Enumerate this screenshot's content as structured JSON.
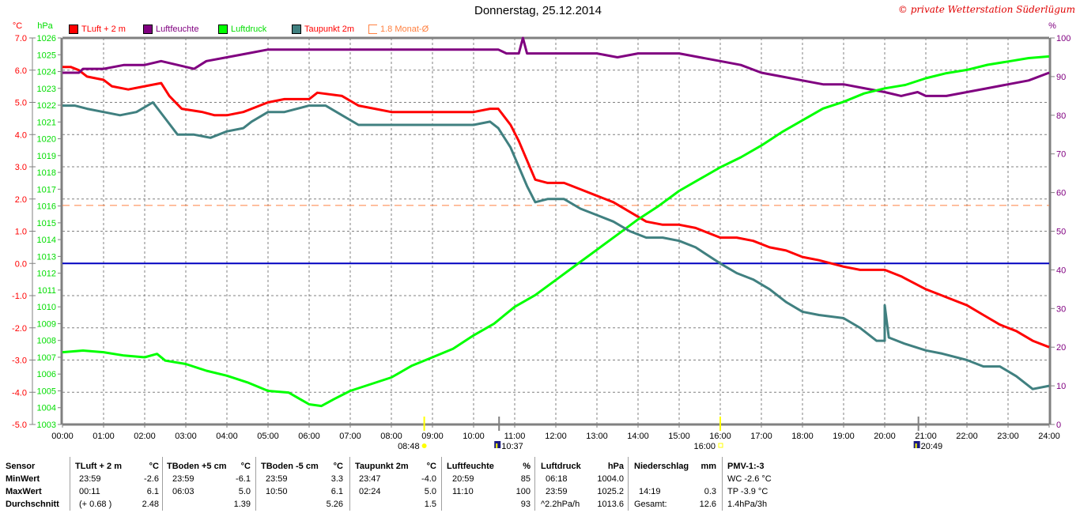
{
  "header": {
    "title": "Donnerstag, 25.12.2014",
    "copyright": "© private Wetterstation Süderlügum"
  },
  "legend": [
    {
      "label": "TLuft + 2 m",
      "color": "#ff0000",
      "text_color": "#ff0000"
    },
    {
      "label": "Luftfeuchte",
      "color": "#800080",
      "text_color": "#800080"
    },
    {
      "label": "Luftdruck",
      "color": "#00ff00",
      "text_color": "#00dd00"
    },
    {
      "label": "Taupunkt 2m",
      "color": "#408080",
      "text_color": "#ff0000"
    },
    {
      "label": "1.8 Monat-Ø",
      "color": "#ff8040",
      "text_color": "#ff8040"
    }
  ],
  "chart_data": {
    "type": "line",
    "title": "Donnerstag, 25.12.2014",
    "xlabel": "",
    "x_range": [
      0,
      24
    ],
    "x_ticks": [
      "00:00",
      "01:00",
      "02:00",
      "03:00",
      "04:00",
      "05:00",
      "06:00",
      "07:00",
      "08:00",
      "09:00",
      "10:00",
      "11:00",
      "12:00",
      "13:00",
      "14:00",
      "15:00",
      "16:00",
      "17:00",
      "18:00",
      "19:00",
      "20:00",
      "21:00",
      "22:00",
      "23:00",
      "24:00"
    ],
    "grid": true,
    "axes": {
      "temp": {
        "label": "°C",
        "range": [
          -5.0,
          7.0
        ],
        "ticks": [
          "7.0",
          "6.0",
          "5.0",
          "4.0",
          "3.0",
          "2.0",
          "1.0",
          "0.0",
          "-1.0",
          "-2.0",
          "-3.0",
          "-4.0",
          "-5.0"
        ],
        "color": "#ff0000"
      },
      "pressure": {
        "label": "hPa",
        "range": [
          1003,
          1026
        ],
        "ticks": [
          "1026",
          "1025",
          "1024",
          "1023",
          "1022",
          "1021",
          "1020",
          "1019",
          "1018",
          "1017",
          "1016",
          "1015",
          "1014",
          "1013",
          "1012",
          "1011",
          "1010",
          "1009",
          "1008",
          "1007",
          "1006",
          "1005",
          "1004",
          "1003"
        ],
        "color": "#00dd00"
      },
      "humidity": {
        "label": "%",
        "range": [
          0,
          100
        ],
        "ticks": [
          "100",
          "90",
          "80",
          "70",
          "60",
          "50",
          "40",
          "30",
          "20",
          "10",
          "0"
        ],
        "color": "#800080"
      }
    },
    "reference_lines": [
      {
        "name": "zero-line",
        "axis": "temp",
        "value": 0.0,
        "color": "#0000c0"
      },
      {
        "name": "month-avg-line",
        "axis": "temp",
        "value": 1.8,
        "color": "#ff8040"
      }
    ],
    "series": [
      {
        "name": "TLuft + 2 m",
        "axis": "temp",
        "color": "#ff0000",
        "points": [
          [
            0,
            6.1
          ],
          [
            0.2,
            6.1
          ],
          [
            0.4,
            6.0
          ],
          [
            0.6,
            5.8
          ],
          [
            1.0,
            5.7
          ],
          [
            1.2,
            5.5
          ],
          [
            1.6,
            5.4
          ],
          [
            2.0,
            5.5
          ],
          [
            2.4,
            5.6
          ],
          [
            2.6,
            5.2
          ],
          [
            2.9,
            4.8
          ],
          [
            3.4,
            4.7
          ],
          [
            3.7,
            4.6
          ],
          [
            4.0,
            4.6
          ],
          [
            4.4,
            4.7
          ],
          [
            4.6,
            4.8
          ],
          [
            5.0,
            5.0
          ],
          [
            5.4,
            5.1
          ],
          [
            6.0,
            5.1
          ],
          [
            6.2,
            5.3
          ],
          [
            6.8,
            5.2
          ],
          [
            7.2,
            4.9
          ],
          [
            7.6,
            4.8
          ],
          [
            8.0,
            4.7
          ],
          [
            9.0,
            4.7
          ],
          [
            10.0,
            4.7
          ],
          [
            10.4,
            4.8
          ],
          [
            10.6,
            4.8
          ],
          [
            10.9,
            4.3
          ],
          [
            11.1,
            3.8
          ],
          [
            11.3,
            3.2
          ],
          [
            11.5,
            2.6
          ],
          [
            11.8,
            2.5
          ],
          [
            12.2,
            2.5
          ],
          [
            12.6,
            2.3
          ],
          [
            13.0,
            2.1
          ],
          [
            13.4,
            1.9
          ],
          [
            13.8,
            1.6
          ],
          [
            14.2,
            1.3
          ],
          [
            14.6,
            1.2
          ],
          [
            15.0,
            1.2
          ],
          [
            15.4,
            1.1
          ],
          [
            16.0,
            0.8
          ],
          [
            16.4,
            0.8
          ],
          [
            16.8,
            0.7
          ],
          [
            17.2,
            0.5
          ],
          [
            17.6,
            0.4
          ],
          [
            18.0,
            0.2
          ],
          [
            18.4,
            0.1
          ],
          [
            19.0,
            -0.1
          ],
          [
            19.4,
            -0.2
          ],
          [
            20.0,
            -0.2
          ],
          [
            20.4,
            -0.4
          ],
          [
            21.0,
            -0.8
          ],
          [
            21.4,
            -1.0
          ],
          [
            22.0,
            -1.3
          ],
          [
            22.4,
            -1.6
          ],
          [
            22.8,
            -1.9
          ],
          [
            23.2,
            -2.1
          ],
          [
            23.6,
            -2.4
          ],
          [
            24.0,
            -2.6
          ]
        ]
      },
      {
        "name": "Luftfeuchte",
        "axis": "humidity",
        "color": "#800080",
        "points": [
          [
            0,
            91
          ],
          [
            0.4,
            91
          ],
          [
            0.5,
            92
          ],
          [
            1.0,
            92
          ],
          [
            1.5,
            93
          ],
          [
            2.0,
            93
          ],
          [
            2.4,
            94
          ],
          [
            2.8,
            93
          ],
          [
            3.2,
            92
          ],
          [
            3.5,
            94
          ],
          [
            4.0,
            95
          ],
          [
            4.5,
            96
          ],
          [
            5.0,
            97
          ],
          [
            6.0,
            97
          ],
          [
            7.0,
            97
          ],
          [
            8.0,
            97
          ],
          [
            9.0,
            97
          ],
          [
            10.0,
            97
          ],
          [
            10.6,
            97
          ],
          [
            10.8,
            96
          ],
          [
            11.1,
            96
          ],
          [
            11.2,
            100
          ],
          [
            11.3,
            96
          ],
          [
            12.0,
            96
          ],
          [
            13.0,
            96
          ],
          [
            13.5,
            95
          ],
          [
            14.0,
            96
          ],
          [
            15.0,
            96
          ],
          [
            15.5,
            95
          ],
          [
            16.0,
            94
          ],
          [
            16.5,
            93
          ],
          [
            17.0,
            91
          ],
          [
            17.5,
            90
          ],
          [
            18.0,
            89
          ],
          [
            18.5,
            88
          ],
          [
            19.0,
            88
          ],
          [
            19.5,
            87
          ],
          [
            20.0,
            86
          ],
          [
            20.4,
            85
          ],
          [
            20.8,
            86
          ],
          [
            21.0,
            85
          ],
          [
            21.5,
            85
          ],
          [
            22.0,
            86
          ],
          [
            22.5,
            87
          ],
          [
            23.0,
            88
          ],
          [
            23.5,
            89
          ],
          [
            24.0,
            91
          ]
        ]
      },
      {
        "name": "Luftdruck",
        "axis": "pressure",
        "color": "#00ff00",
        "points": [
          [
            0,
            1007.3
          ],
          [
            0.5,
            1007.4
          ],
          [
            1.0,
            1007.3
          ],
          [
            1.5,
            1007.1
          ],
          [
            2.0,
            1007.0
          ],
          [
            2.3,
            1007.2
          ],
          [
            2.5,
            1006.8
          ],
          [
            3.0,
            1006.6
          ],
          [
            3.5,
            1006.2
          ],
          [
            4.0,
            1005.9
          ],
          [
            4.5,
            1005.5
          ],
          [
            5.0,
            1005.0
          ],
          [
            5.5,
            1004.9
          ],
          [
            6.0,
            1004.2
          ],
          [
            6.3,
            1004.1
          ],
          [
            6.6,
            1004.5
          ],
          [
            7.0,
            1005.0
          ],
          [
            7.5,
            1005.4
          ],
          [
            8.0,
            1005.8
          ],
          [
            8.5,
            1006.5
          ],
          [
            9.0,
            1007.0
          ],
          [
            9.5,
            1007.5
          ],
          [
            10.0,
            1008.3
          ],
          [
            10.5,
            1009.0
          ],
          [
            11.0,
            1010.0
          ],
          [
            11.5,
            1010.7
          ],
          [
            12.0,
            1011.6
          ],
          [
            12.5,
            1012.5
          ],
          [
            13.0,
            1013.4
          ],
          [
            13.5,
            1014.3
          ],
          [
            14.0,
            1015.2
          ],
          [
            14.5,
            1016.0
          ],
          [
            15.0,
            1016.9
          ],
          [
            15.5,
            1017.6
          ],
          [
            16.0,
            1018.3
          ],
          [
            16.5,
            1018.9
          ],
          [
            17.0,
            1019.6
          ],
          [
            17.5,
            1020.4
          ],
          [
            18.0,
            1021.1
          ],
          [
            18.5,
            1021.8
          ],
          [
            19.0,
            1022.2
          ],
          [
            19.5,
            1022.7
          ],
          [
            20.0,
            1023.0
          ],
          [
            20.5,
            1023.2
          ],
          [
            21.0,
            1023.6
          ],
          [
            21.5,
            1023.9
          ],
          [
            22.0,
            1024.1
          ],
          [
            22.5,
            1024.4
          ],
          [
            23.0,
            1024.6
          ],
          [
            23.5,
            1024.8
          ],
          [
            24.0,
            1024.9
          ]
        ]
      },
      {
        "name": "Taupunkt 2m",
        "axis": "temp",
        "color": "#408080",
        "points": [
          [
            0,
            4.9
          ],
          [
            0.3,
            4.9
          ],
          [
            0.6,
            4.8
          ],
          [
            1.0,
            4.7
          ],
          [
            1.4,
            4.6
          ],
          [
            1.8,
            4.7
          ],
          [
            2.2,
            5.0
          ],
          [
            2.5,
            4.5
          ],
          [
            2.8,
            4.0
          ],
          [
            3.2,
            4.0
          ],
          [
            3.6,
            3.9
          ],
          [
            4.0,
            4.1
          ],
          [
            4.4,
            4.2
          ],
          [
            4.6,
            4.4
          ],
          [
            5.0,
            4.7
          ],
          [
            5.4,
            4.7
          ],
          [
            6.0,
            4.9
          ],
          [
            6.4,
            4.9
          ],
          [
            6.8,
            4.6
          ],
          [
            7.2,
            4.3
          ],
          [
            7.6,
            4.3
          ],
          [
            8.0,
            4.3
          ],
          [
            9.0,
            4.3
          ],
          [
            10.0,
            4.3
          ],
          [
            10.4,
            4.4
          ],
          [
            10.6,
            4.2
          ],
          [
            10.9,
            3.6
          ],
          [
            11.1,
            3.0
          ],
          [
            11.3,
            2.4
          ],
          [
            11.5,
            1.9
          ],
          [
            11.8,
            2.0
          ],
          [
            12.2,
            2.0
          ],
          [
            12.6,
            1.7
          ],
          [
            13.0,
            1.5
          ],
          [
            13.4,
            1.3
          ],
          [
            13.8,
            1.0
          ],
          [
            14.2,
            0.8
          ],
          [
            14.6,
            0.8
          ],
          [
            15.0,
            0.7
          ],
          [
            15.4,
            0.5
          ],
          [
            16.0,
            0.0
          ],
          [
            16.4,
            -0.3
          ],
          [
            16.8,
            -0.5
          ],
          [
            17.2,
            -0.8
          ],
          [
            17.6,
            -1.2
          ],
          [
            18.0,
            -1.5
          ],
          [
            18.4,
            -1.6
          ],
          [
            19.0,
            -1.7
          ],
          [
            19.4,
            -2.0
          ],
          [
            19.8,
            -2.4
          ],
          [
            20.0,
            -2.4
          ],
          [
            20.0,
            -1.3
          ],
          [
            20.1,
            -2.3
          ],
          [
            20.5,
            -2.5
          ],
          [
            21.0,
            -2.7
          ],
          [
            21.4,
            -2.8
          ],
          [
            22.0,
            -3.0
          ],
          [
            22.4,
            -3.2
          ],
          [
            22.8,
            -3.2
          ],
          [
            23.2,
            -3.5
          ],
          [
            23.6,
            -3.9
          ],
          [
            24.0,
            -3.8
          ]
        ]
      }
    ],
    "markers": [
      {
        "name": "sunrise",
        "time": "08:48",
        "value": 8.8,
        "color": "#ffff00"
      },
      {
        "name": "moonrise",
        "time": "10:37",
        "value": 10.62,
        "color": "#808080"
      },
      {
        "name": "sunset",
        "time": "16:00",
        "value": 16.0,
        "color": "#ffff00"
      },
      {
        "name": "moonset",
        "time": "20:49",
        "value": 20.82,
        "color": "#808080"
      }
    ]
  },
  "stats": {
    "row_labels": [
      "Sensor",
      "MinWert",
      "MaxWert",
      "Durchschnitt"
    ],
    "tluft": {
      "header": "TLuft + 2 m",
      "unit": "°C",
      "min_time": "23:59",
      "min": "-2.6",
      "max_time": "00:11",
      "max": "6.1",
      "avg_note": "(+ 0.68 )",
      "avg": "2.48"
    },
    "tboden5": {
      "header": "TBoden +5 cm",
      "unit": "°C",
      "min_time": "23:59",
      "min": "-6.1",
      "max_time": "06:03",
      "max": "5.0",
      "avg": "1.39"
    },
    "tbodenm5": {
      "header": "TBoden -5 cm",
      "unit": "°C",
      "min_time": "23:59",
      "min": "3.3",
      "max_time": "10:50",
      "max": "6.1",
      "avg": "5.26"
    },
    "taupunkt": {
      "header": "Taupunkt 2m",
      "unit": "°C",
      "min_time": "23:47",
      "min": "-4.0",
      "max_time": "02:24",
      "max": "5.0",
      "avg": "1.5"
    },
    "feuchte": {
      "header": "Luftfeuchte",
      "unit": "%",
      "min_time": "20:59",
      "min": "85",
      "max_time": "11:10",
      "max": "100",
      "avg": "93"
    },
    "druck": {
      "header": "Luftdruck",
      "unit": "hPa",
      "min_time": "06:18",
      "min": "1004.0",
      "max_time": "23:59",
      "max": "1025.2",
      "avg_note": "^2.2hPa/h",
      "avg": "1013.6"
    },
    "nieder": {
      "header": "Niederschlag",
      "unit": "mm",
      "max_time": "14:19",
      "max": "0.3",
      "total_label": "Gesamt:",
      "total": "12.6"
    },
    "pmv": {
      "header": "PMV-1:-3",
      "wc": "WC -2.6 °C",
      "tp": "TP -3.9 °C",
      "trend": "1.4hPa/3h"
    }
  }
}
